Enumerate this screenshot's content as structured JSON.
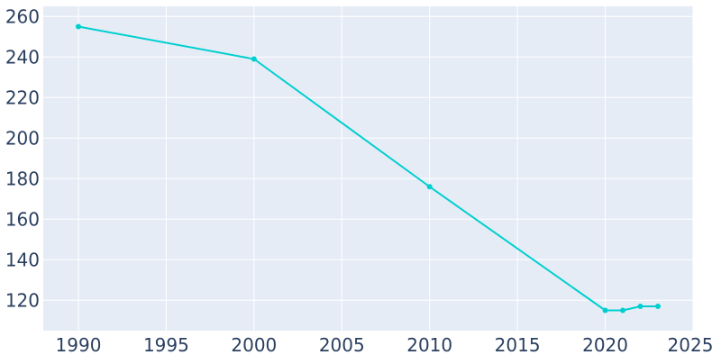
{
  "chart_data": {
    "type": "line",
    "title": "",
    "xlabel": "",
    "ylabel": "",
    "x": [
      1990,
      2000,
      2010,
      2020,
      2021,
      2022,
      2023
    ],
    "series": [
      {
        "values": [
          255,
          239,
          176,
          115,
          115,
          117,
          117
        ]
      }
    ],
    "xlim": [
      1988,
      2025
    ],
    "ylim": [
      105,
      265
    ],
    "xticks": [
      1990,
      1995,
      2000,
      2005,
      2010,
      2015,
      2020,
      2025
    ],
    "yticks": [
      120,
      140,
      160,
      180,
      200,
      220,
      240,
      260
    ],
    "grid": true,
    "colors": {
      "plot_background": "#e5ecf6",
      "grid": "#ffffff",
      "line": "#00cfcf",
      "text": "#2a3f5f"
    }
  }
}
